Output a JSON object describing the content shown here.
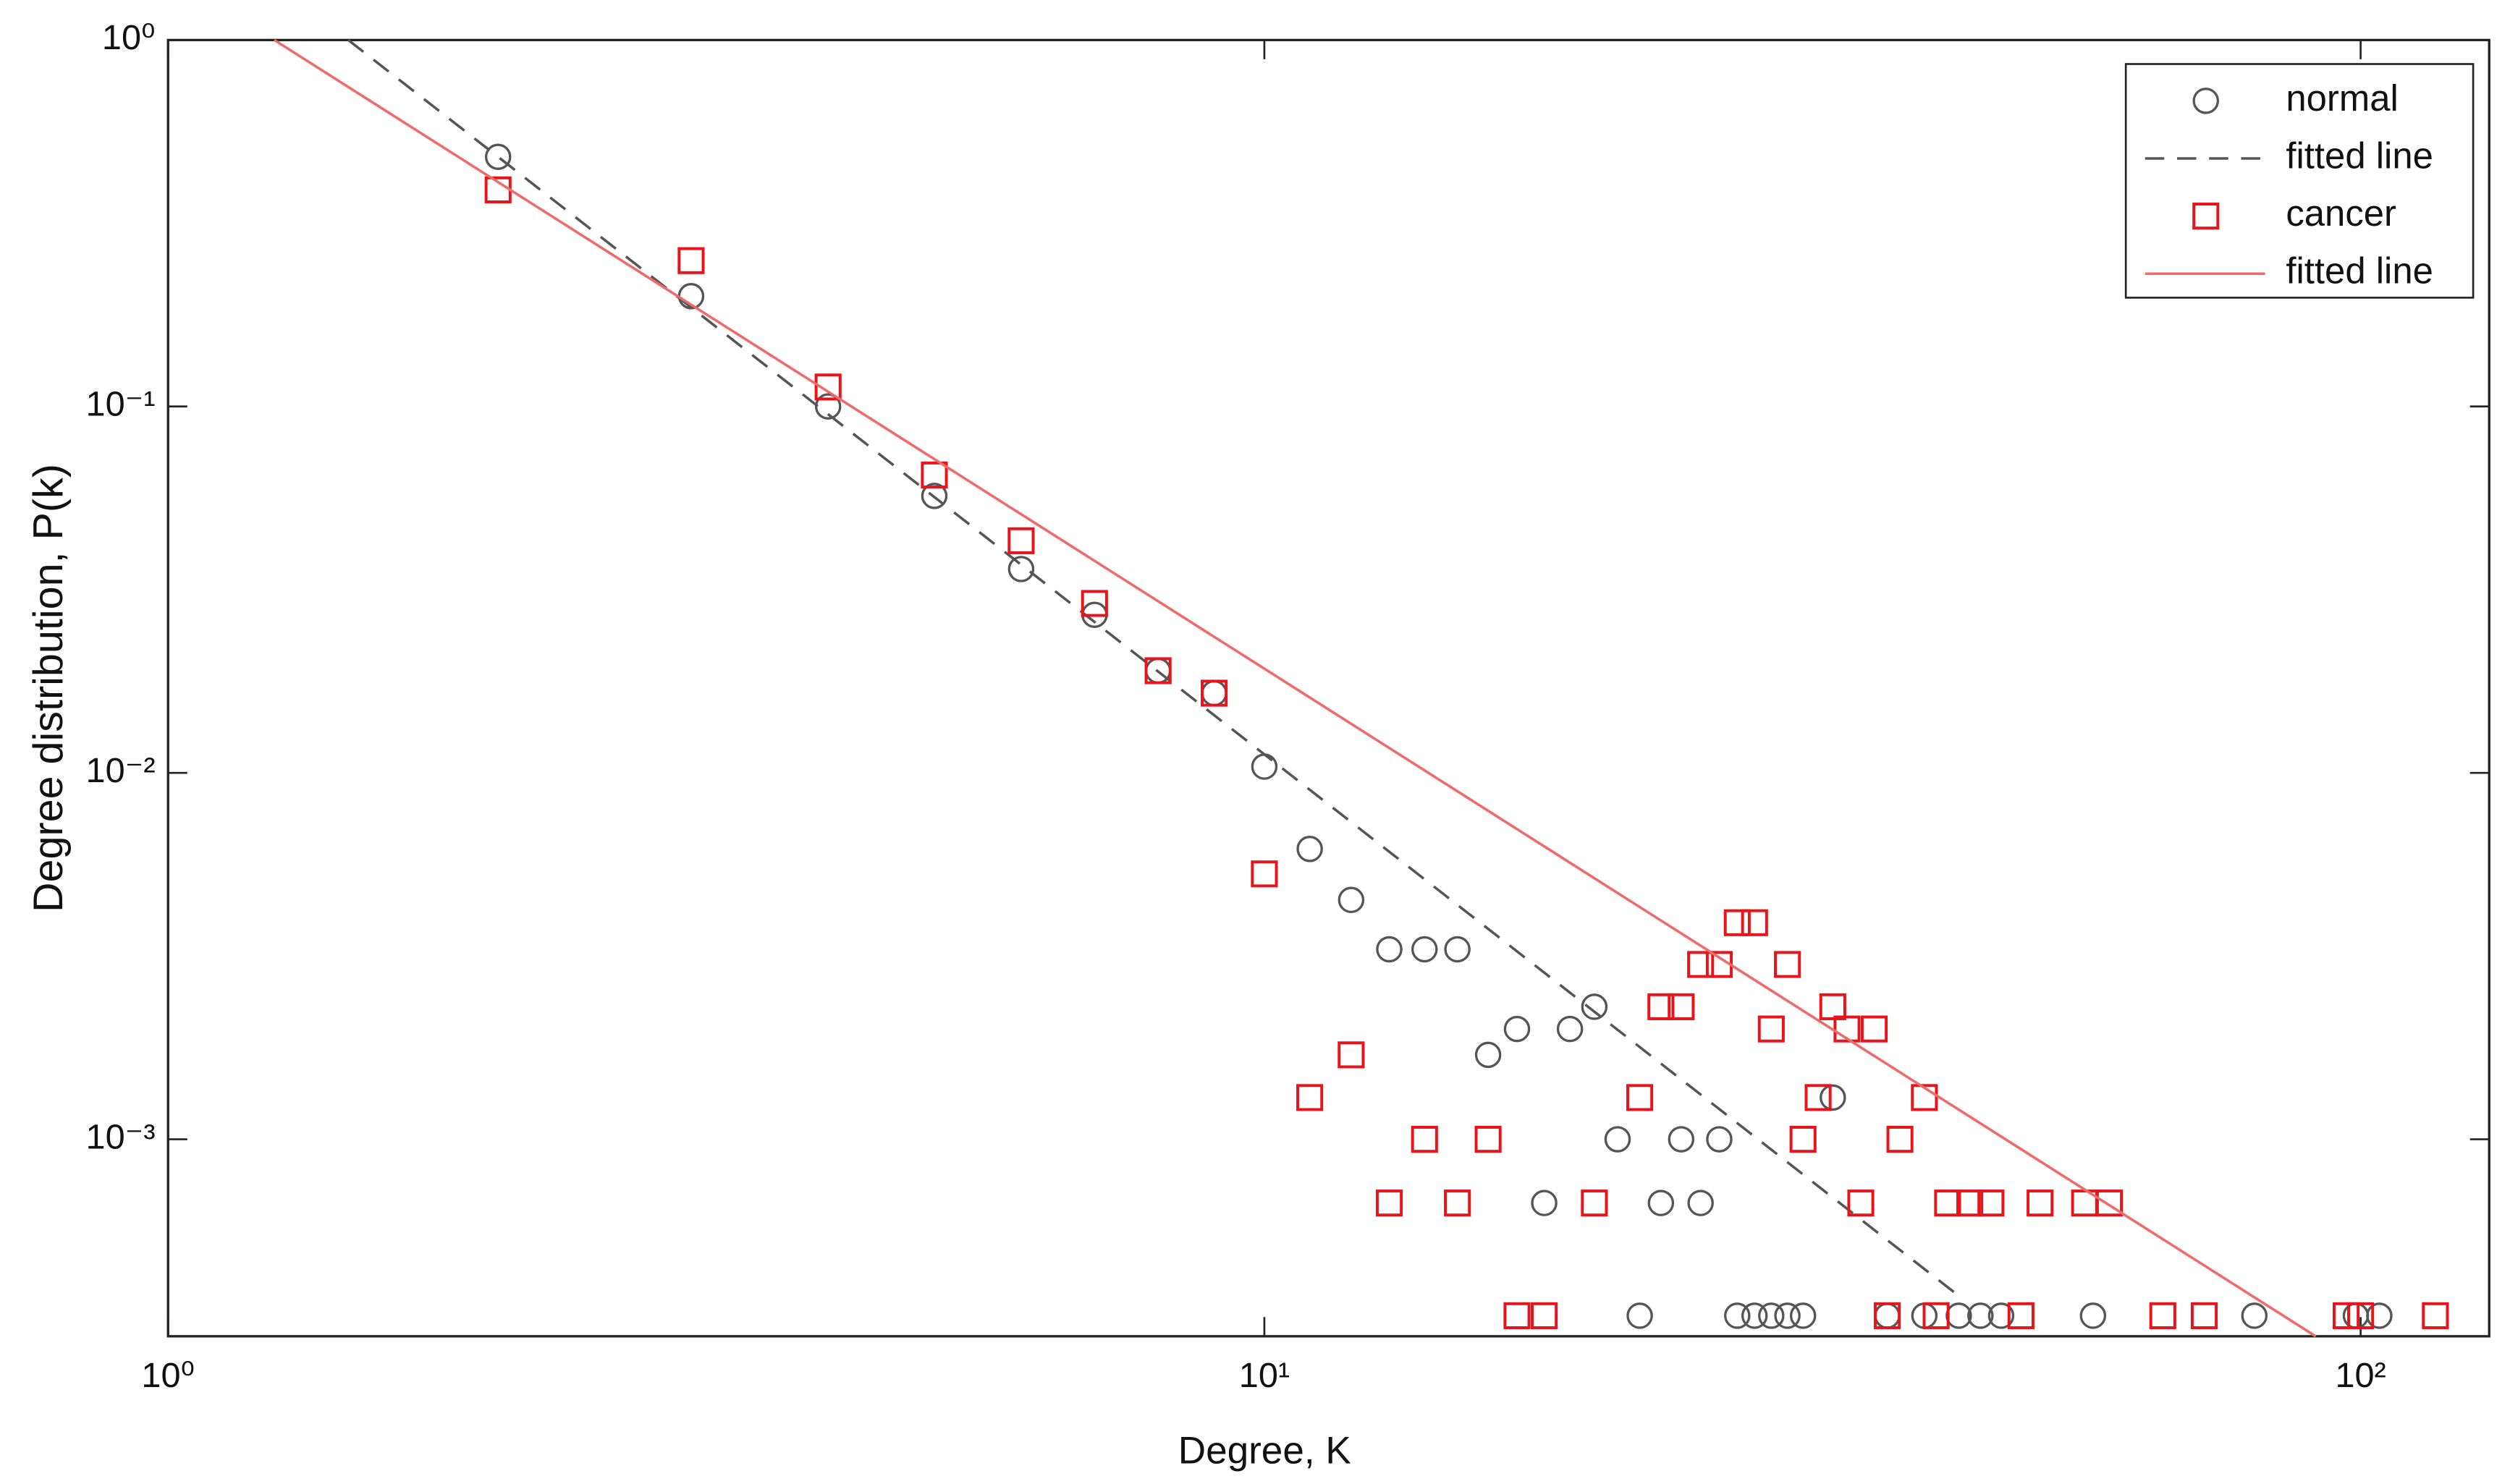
{
  "chart_data": {
    "type": "scatter",
    "xlabel": "Degree, K",
    "ylabel": "Degree distribution, P(k)",
    "xscale": "log",
    "yscale": "log",
    "xlim": [
      1,
      131
    ],
    "ylim": [
      0.00029,
      1
    ],
    "xticks": [
      {
        "value": 1,
        "label": "10⁰"
      },
      {
        "value": 10,
        "label": "10¹"
      },
      {
        "value": 100,
        "label": "10²"
      }
    ],
    "yticks": [
      {
        "value": 0.001,
        "label": "10⁻³"
      },
      {
        "value": 0.01,
        "label": "10⁻²"
      },
      {
        "value": 0.1,
        "label": "10⁻¹"
      },
      {
        "value": 1,
        "label": "10⁰"
      }
    ],
    "legend": "upper right",
    "series": [
      {
        "name": "normal",
        "color": "#555555",
        "style": "circle",
        "x": [
          2,
          3,
          4,
          5,
          6,
          7,
          8,
          9,
          10,
          11,
          12,
          13,
          14,
          15,
          16,
          17,
          18,
          19,
          20,
          21,
          22,
          23,
          24,
          25,
          26,
          27,
          28,
          29,
          30,
          31,
          33,
          37,
          40,
          43,
          45,
          47,
          57,
          80,
          99,
          104
        ],
        "values": [
          0.48,
          0.2,
          0.1,
          0.057,
          0.036,
          0.027,
          0.019,
          0.0165,
          0.0104,
          0.0062,
          0.0045,
          0.0033,
          0.0033,
          0.0033,
          0.0017,
          0.002,
          0.00067,
          0.002,
          0.0023,
          0.001,
          0.00033,
          0.00067,
          0.001,
          0.00067,
          0.001,
          0.00033,
          0.00033,
          0.00033,
          0.00033,
          0.00033,
          0.0013,
          0.00033,
          0.00033,
          0.00033,
          0.00033,
          0.00033,
          0.00033,
          0.00033,
          0.00033,
          0.00033
        ]
      },
      {
        "name": "fitted line",
        "color": "#555555",
        "style": "dashed",
        "x": [
          1.46,
          42.7
        ],
        "values": [
          1,
          0.00038
        ]
      },
      {
        "name": "cancer",
        "color": "#e8141b",
        "style": "square",
        "x": [
          2,
          3,
          4,
          5,
          6,
          7,
          8,
          9,
          10,
          11,
          12,
          13,
          14,
          15,
          16,
          17,
          18,
          20,
          22,
          23,
          24,
          25,
          26,
          27,
          28,
          29,
          30,
          31,
          32,
          33,
          34,
          35,
          36,
          37,
          38,
          40,
          41,
          42,
          44,
          46,
          49,
          51,
          56,
          59,
          66,
          72,
          97,
          100,
          117
        ],
        "values": [
          0.39,
          0.25,
          0.113,
          0.065,
          0.043,
          0.029,
          0.019,
          0.0165,
          0.0053,
          0.0013,
          0.0017,
          0.00067,
          0.001,
          0.00067,
          0.001,
          0.00033,
          0.00033,
          0.00067,
          0.0013,
          0.0023,
          0.0023,
          0.003,
          0.003,
          0.0039,
          0.0039,
          0.002,
          0.003,
          0.001,
          0.0013,
          0.0023,
          0.002,
          0.00067,
          0.002,
          0.00033,
          0.001,
          0.0013,
          0.00033,
          0.00067,
          0.00067,
          0.00067,
          0.00033,
          0.00067,
          0.00067,
          0.00067,
          0.00033,
          0.00033,
          0.00033,
          0.00033,
          0.00033
        ]
      },
      {
        "name": "fitted line",
        "color": "#f06a6a",
        "style": "solid",
        "x": [
          1.25,
          91
        ],
        "values": [
          1,
          0.00029
        ]
      }
    ]
  }
}
